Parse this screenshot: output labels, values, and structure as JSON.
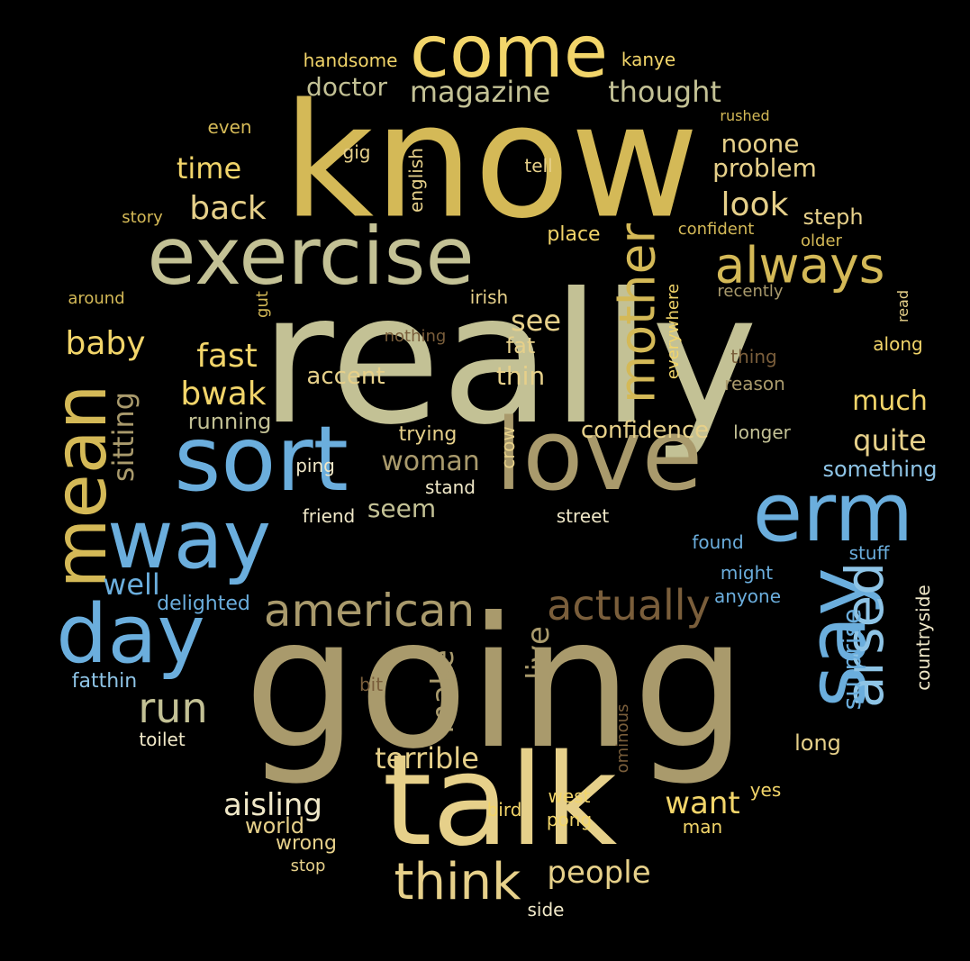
{
  "colors": {
    "background": "#000000",
    "gold": "#D4B957",
    "khaki": "#C3C195",
    "tan": "#A99A6C",
    "sand": "#E6D08A",
    "yellow": "#F2D56A",
    "blue": "#6BAEDD",
    "lightblue": "#8EC4E6",
    "brown": "#7A5E3B",
    "white": "#F0E8C8"
  },
  "words": [
    {
      "text": "really",
      "color": "khaki"
    },
    {
      "text": "going",
      "color": "tan"
    },
    {
      "text": "know",
      "color": "gold"
    },
    {
      "text": "talk",
      "color": "sand"
    },
    {
      "text": "love",
      "color": "tan"
    },
    {
      "text": "sort",
      "color": "blue"
    },
    {
      "text": "exercise",
      "color": "khaki"
    },
    {
      "text": "come",
      "color": "yellow"
    },
    {
      "text": "way",
      "color": "blue"
    },
    {
      "text": "erm",
      "color": "blue"
    },
    {
      "text": "mean",
      "color": "gold"
    },
    {
      "text": "say",
      "color": "blue"
    },
    {
      "text": "day",
      "color": "blue"
    },
    {
      "text": "arsed",
      "color": "lightblue"
    },
    {
      "text": "mother",
      "color": "gold"
    },
    {
      "text": "always",
      "color": "gold"
    },
    {
      "text": "american",
      "color": "tan"
    },
    {
      "text": "actually",
      "color": "brown"
    },
    {
      "text": "think",
      "color": "sand"
    },
    {
      "text": "run",
      "color": "khaki"
    },
    {
      "text": "magazine",
      "color": "khaki"
    },
    {
      "text": "thought",
      "color": "khaki"
    },
    {
      "text": "doctor",
      "color": "khaki"
    },
    {
      "text": "noone",
      "color": "sand"
    },
    {
      "text": "problem",
      "color": "sand"
    },
    {
      "text": "time",
      "color": "yellow"
    },
    {
      "text": "back",
      "color": "sand"
    },
    {
      "text": "look",
      "color": "sand"
    },
    {
      "text": "steph",
      "color": "sand"
    },
    {
      "text": "baby",
      "color": "yellow"
    },
    {
      "text": "fast",
      "color": "yellow"
    },
    {
      "text": "bwak",
      "color": "yellow"
    },
    {
      "text": "see",
      "color": "sand"
    },
    {
      "text": "fat",
      "color": "sand"
    },
    {
      "text": "thin",
      "color": "sand"
    },
    {
      "text": "accent",
      "color": "sand"
    },
    {
      "text": "sitting",
      "color": "tan"
    },
    {
      "text": "running",
      "color": "khaki"
    },
    {
      "text": "much",
      "color": "yellow"
    },
    {
      "text": "quite",
      "color": "sand"
    },
    {
      "text": "confidence",
      "color": "sand"
    },
    {
      "text": "woman",
      "color": "tan"
    },
    {
      "text": "seem",
      "color": "khaki"
    },
    {
      "text": "trying",
      "color": "sand"
    },
    {
      "text": "crow",
      "color": "sand"
    },
    {
      "text": "something",
      "color": "lightblue"
    },
    {
      "text": "stand",
      "color": "white"
    },
    {
      "text": "friend",
      "color": "white"
    },
    {
      "text": "street",
      "color": "white"
    },
    {
      "text": "well",
      "color": "blue"
    },
    {
      "text": "delighted",
      "color": "blue"
    },
    {
      "text": "make",
      "color": "tan"
    },
    {
      "text": "live",
      "color": "tan"
    },
    {
      "text": "surprise",
      "color": "blue"
    },
    {
      "text": "countryside",
      "color": "white"
    },
    {
      "text": "terrible",
      "color": "sand"
    },
    {
      "text": "aisling",
      "color": "white"
    },
    {
      "text": "want",
      "color": "yellow"
    },
    {
      "text": "people",
      "color": "sand"
    },
    {
      "text": "world",
      "color": "sand"
    },
    {
      "text": "wrong",
      "color": "sand"
    },
    {
      "text": "stop",
      "color": "sand"
    },
    {
      "text": "bird",
      "color": "yellow"
    },
    {
      "text": "west",
      "color": "yellow"
    },
    {
      "text": "pong",
      "color": "yellow"
    },
    {
      "text": "yes",
      "color": "yellow"
    },
    {
      "text": "man",
      "color": "yellow"
    },
    {
      "text": "side",
      "color": "white"
    },
    {
      "text": "long",
      "color": "sand"
    },
    {
      "text": "toilet",
      "color": "white"
    },
    {
      "text": "fatthin",
      "color": "lightblue"
    },
    {
      "text": "bit",
      "color": "brown"
    },
    {
      "text": "ominous",
      "color": "brown"
    },
    {
      "text": "handsome",
      "color": "yellow"
    },
    {
      "text": "kanye",
      "color": "yellow"
    },
    {
      "text": "rushed",
      "color": "gold"
    },
    {
      "text": "even",
      "color": "gold"
    },
    {
      "text": "gig",
      "color": "sand"
    },
    {
      "text": "english",
      "color": "sand"
    },
    {
      "text": "tell",
      "color": "sand"
    },
    {
      "text": "story",
      "color": "gold"
    },
    {
      "text": "confident",
      "color": "gold"
    },
    {
      "text": "older",
      "color": "gold"
    },
    {
      "text": "place",
      "color": "yellow"
    },
    {
      "text": "around",
      "color": "gold"
    },
    {
      "text": "gut",
      "color": "gold"
    },
    {
      "text": "irish",
      "color": "sand"
    },
    {
      "text": "recently",
      "color": "tan"
    },
    {
      "text": "read",
      "color": "sand"
    },
    {
      "text": "everywhere",
      "color": "yellow"
    },
    {
      "text": "nothing",
      "color": "brown"
    },
    {
      "text": "thing",
      "color": "brown"
    },
    {
      "text": "reason",
      "color": "tan"
    },
    {
      "text": "along",
      "color": "yellow"
    },
    {
      "text": "longer",
      "color": "khaki"
    },
    {
      "text": "ping",
      "color": "white"
    },
    {
      "text": "found",
      "color": "blue"
    },
    {
      "text": "stuff",
      "color": "blue"
    },
    {
      "text": "might",
      "color": "blue"
    },
    {
      "text": "anyone",
      "color": "blue"
    }
  ]
}
